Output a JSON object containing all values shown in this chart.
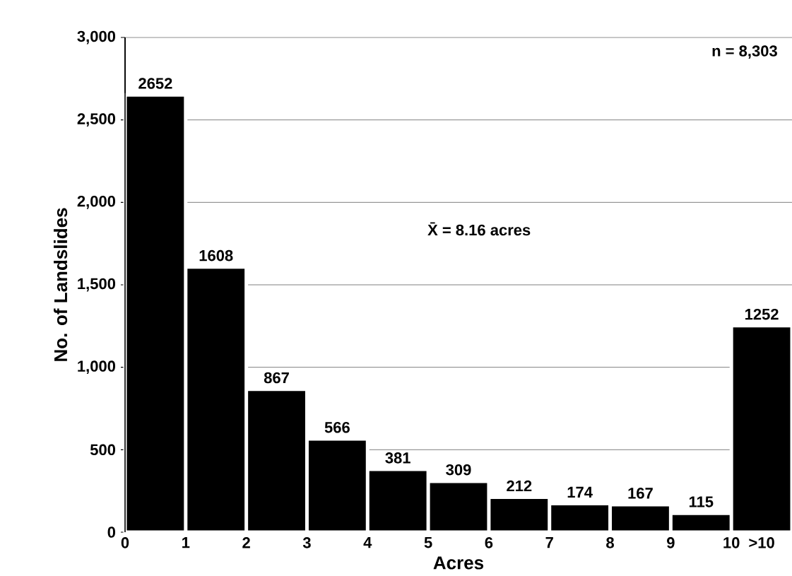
{
  "chart_data": {
    "type": "histogram",
    "xlabel": "Acres",
    "ylabel": "No. of Landslides",
    "bins": [
      0,
      1,
      2,
      3,
      4,
      5,
      6,
      7,
      8,
      9,
      10,
      11
    ],
    "values": [
      2652,
      1608,
      867,
      566,
      381,
      309,
      212,
      174,
      167,
      115,
      1252
    ],
    "color": "#000000",
    "data_labels": true,
    "grid": "y",
    "xlim": [
      0,
      11
    ],
    "xticks": [
      0,
      1,
      2,
      3,
      4,
      5,
      6,
      7,
      8,
      9,
      10,
      {
        "value": 10.5,
        "label": ">10"
      }
    ],
    "ylim": [
      0,
      3000
    ],
    "yticks": [
      0,
      {
        "value": 500,
        "label": "500"
      },
      {
        "value": 1000,
        "label": "1,000"
      },
      {
        "value": 1500,
        "label": "1,500"
      },
      {
        "value": 2000,
        "label": "2,000"
      },
      {
        "value": 2500,
        "label": "2,500"
      },
      {
        "value": 3000,
        "label": "3,000"
      }
    ],
    "annotations": [
      "n = 8,303",
      "X̄ = 8.16 acres"
    ]
  }
}
